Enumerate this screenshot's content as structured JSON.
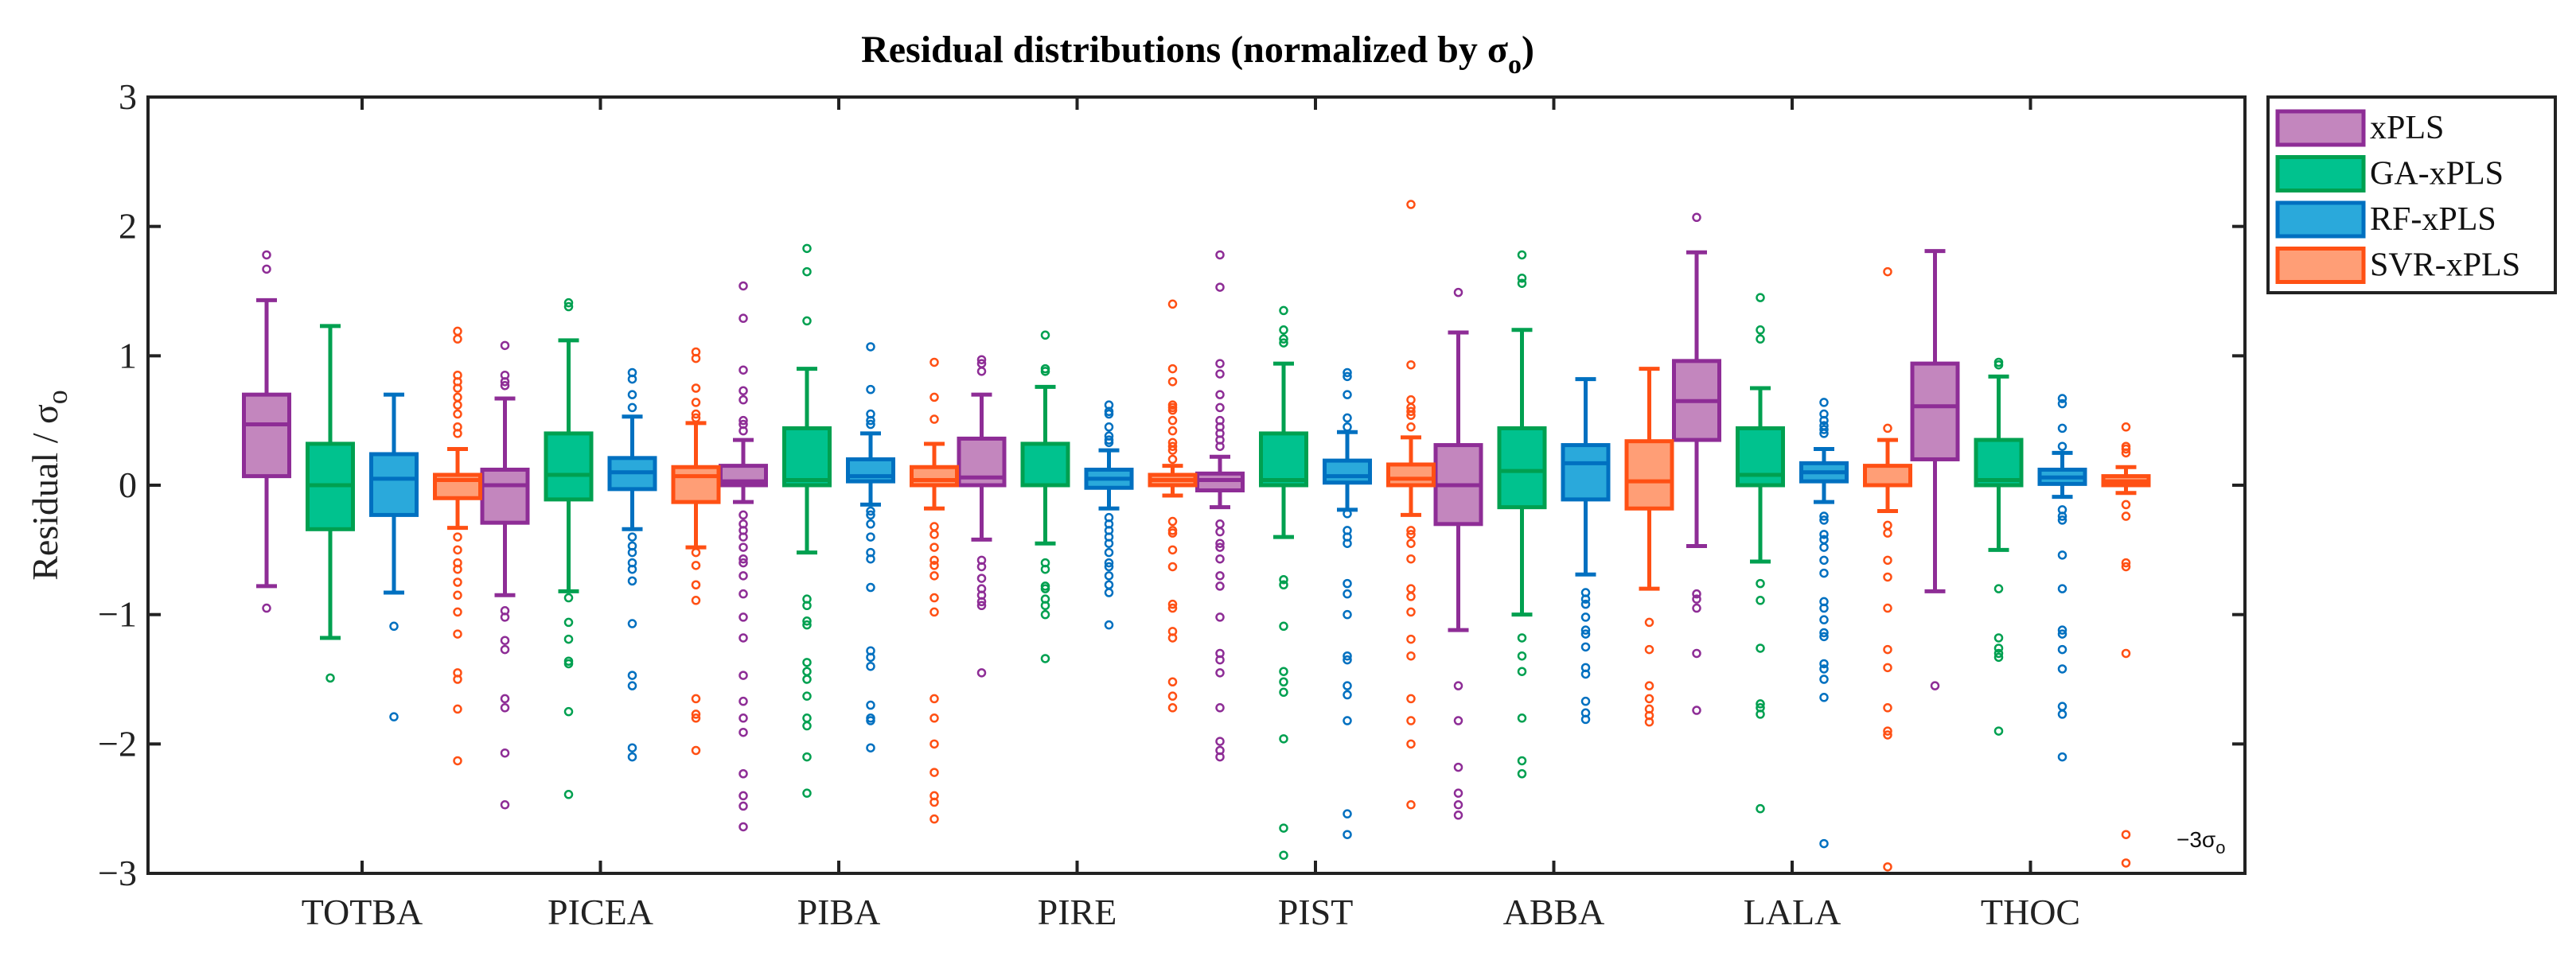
{
  "chart_data": {
    "type": "boxplot",
    "title": "Residual distributions (normalized by σ",
    "title_sub": "o",
    "title_close": ")",
    "ylabel": "Residual / σ",
    "ylabel_sub": "o",
    "xlabel": "",
    "ylim": [
      -3,
      3
    ],
    "yticks": [
      -3,
      -2,
      -1,
      0,
      1,
      2,
      3
    ],
    "ytick_labels": [
      "−3",
      "−2",
      "−1",
      "0",
      "1",
      "2",
      "3"
    ],
    "annotation": {
      "text": "−3σ",
      "sub": "o",
      "y": -3
    },
    "legend_position": "outside-top-right",
    "categories": [
      "TOTBA",
      "PICEA",
      "PIBA",
      "PIRE",
      "PIST",
      "ABBA",
      "LALA",
      "THOC"
    ],
    "series": [
      {
        "name": "xPLS",
        "fill": "#C386BE",
        "edge": "#8E2D96",
        "boxes": [
          {
            "lo": -0.78,
            "q1": 0.07,
            "med": 0.47,
            "q3": 0.7,
            "hi": 1.43,
            "outliers": [
              1.78,
              1.67,
              -0.95
            ]
          },
          {
            "lo": -0.85,
            "q1": -0.29,
            "med": 0.0,
            "q3": 0.12,
            "hi": 0.67,
            "outliers": [
              1.08,
              0.85,
              0.8,
              0.77,
              -0.97,
              -1.02,
              -1.2,
              -1.27,
              -1.65,
              -1.72,
              -2.07,
              -2.47
            ]
          },
          {
            "lo": -0.13,
            "q1": 0.0,
            "med": 0.03,
            "q3": 0.15,
            "hi": 0.35,
            "outliers": [
              1.54,
              1.29,
              0.89,
              0.73,
              0.66,
              0.5,
              0.47,
              0.42,
              -0.23,
              -0.3,
              -0.35,
              -0.4,
              -0.48,
              -0.57,
              -0.6,
              -0.7,
              -0.84,
              -1.02,
              -1.18,
              -1.47,
              -1.67,
              -1.8,
              -1.91,
              -2.23,
              -2.4,
              -2.48,
              -2.64
            ]
          },
          {
            "lo": -0.42,
            "q1": 0.0,
            "med": 0.06,
            "q3": 0.36,
            "hi": 0.7,
            "outliers": [
              0.97,
              0.94,
              0.88,
              -0.58,
              -0.63,
              -0.72,
              -0.8,
              -0.85,
              -0.9,
              -0.93,
              -1.45
            ]
          },
          {
            "lo": -0.17,
            "q1": -0.04,
            "med": 0.04,
            "q3": 0.09,
            "hi": 0.22,
            "outliers": [
              1.78,
              1.53,
              0.94,
              0.86,
              0.7,
              0.6,
              0.5,
              0.45,
              0.4,
              0.35,
              0.3,
              -0.3,
              -0.36,
              -0.45,
              -0.48,
              -0.57,
              -0.7,
              -0.78,
              -1.02,
              -1.3,
              -1.35,
              -1.45,
              -1.72,
              -1.98,
              -2.05,
              -2.1
            ]
          },
          {
            "lo": -1.12,
            "q1": -0.3,
            "med": 0.0,
            "q3": 0.31,
            "hi": 1.18,
            "outliers": [
              1.49,
              -1.55,
              -1.82,
              -2.18,
              -2.38,
              -2.47,
              -2.55
            ]
          },
          {
            "lo": -0.47,
            "q1": 0.35,
            "med": 0.65,
            "q3": 0.96,
            "hi": 1.8,
            "outliers": [
              2.07,
              -0.84,
              -0.88,
              -0.95,
              -1.3,
              -1.74
            ]
          },
          {
            "lo": -0.82,
            "q1": 0.2,
            "med": 0.61,
            "q3": 0.94,
            "hi": 1.81,
            "outliers": [
              -1.55
            ]
          }
        ]
      },
      {
        "name": "GA-xPLS",
        "fill": "#00C28E",
        "edge": "#00A050",
        "boxes": [
          {
            "lo": -1.18,
            "q1": -0.34,
            "med": 0.0,
            "q3": 0.32,
            "hi": 1.23,
            "outliers": [
              -1.49
            ]
          },
          {
            "lo": -0.82,
            "q1": -0.11,
            "med": 0.08,
            "q3": 0.4,
            "hi": 1.12,
            "outliers": [
              1.41,
              1.38,
              -0.87,
              -1.06,
              -1.19,
              -1.36,
              -1.38,
              -1.75,
              -2.39
            ]
          },
          {
            "lo": -0.52,
            "q1": 0.0,
            "med": 0.04,
            "q3": 0.44,
            "hi": 0.9,
            "outliers": [
              1.83,
              1.65,
              1.27,
              -0.88,
              -0.93,
              -1.05,
              -1.08,
              -1.37,
              -1.44,
              -1.5,
              -1.63,
              -1.8,
              -1.86,
              -2.1,
              -2.38
            ]
          },
          {
            "lo": -0.45,
            "q1": 0.0,
            "med": 0.0,
            "q3": 0.32,
            "hi": 0.76,
            "outliers": [
              1.16,
              0.9,
              0.88,
              -0.6,
              -0.65,
              -0.78,
              -0.8,
              -0.88,
              -0.93,
              -1.0,
              -1.34
            ]
          },
          {
            "lo": -0.4,
            "q1": 0.0,
            "med": 0.04,
            "q3": 0.4,
            "hi": 0.94,
            "outliers": [
              1.35,
              1.2,
              1.13,
              1.1,
              -0.73,
              -0.77,
              -1.09,
              -1.44,
              -1.52,
              -1.6,
              -1.96,
              -2.65,
              -2.86
            ]
          },
          {
            "lo": -1.0,
            "q1": -0.17,
            "med": 0.11,
            "q3": 0.44,
            "hi": 1.2,
            "outliers": [
              1.78,
              1.6,
              1.56,
              -1.18,
              -1.32,
              -1.44,
              -1.8,
              -2.13,
              -2.23
            ]
          },
          {
            "lo": -0.59,
            "q1": 0.0,
            "med": 0.08,
            "q3": 0.44,
            "hi": 0.75,
            "outliers": [
              1.45,
              1.2,
              1.13,
              -0.76,
              -0.89,
              -1.26,
              -1.69,
              -1.72,
              -1.77,
              -2.5
            ]
          },
          {
            "lo": -0.5,
            "q1": 0.0,
            "med": 0.04,
            "q3": 0.35,
            "hi": 0.84,
            "outliers": [
              0.95,
              0.93,
              -0.8,
              -1.18,
              -1.26,
              -1.3,
              -1.33,
              -1.9
            ]
          }
        ]
      },
      {
        "name": "RF-xPLS",
        "fill": "#2AA9DB",
        "edge": "#0070C0",
        "boxes": [
          {
            "lo": -0.83,
            "q1": -0.23,
            "med": 0.05,
            "q3": 0.24,
            "hi": 0.7,
            "outliers": [
              -1.09,
              -1.79
            ]
          },
          {
            "lo": -0.34,
            "q1": -0.03,
            "med": 0.1,
            "q3": 0.21,
            "hi": 0.53,
            "outliers": [
              0.87,
              0.82,
              0.7,
              0.6,
              -0.4,
              -0.47,
              -0.52,
              -0.6,
              -0.65,
              -0.74,
              -1.07,
              -1.47,
              -1.55,
              -2.03,
              -2.1
            ]
          },
          {
            "lo": -0.15,
            "q1": 0.03,
            "med": 0.07,
            "q3": 0.2,
            "hi": 0.4,
            "outliers": [
              1.07,
              0.74,
              0.55,
              0.5,
              0.47,
              -0.2,
              -0.23,
              -0.3,
              -0.4,
              -0.52,
              -0.57,
              -0.79,
              -1.28,
              -1.33,
              -1.4,
              -1.7,
              -1.8,
              -1.82,
              -2.03
            ]
          },
          {
            "lo": -0.18,
            "q1": -0.02,
            "med": 0.05,
            "q3": 0.12,
            "hi": 0.27,
            "outliers": [
              0.62,
              0.57,
              0.55,
              0.45,
              0.38,
              0.35,
              0.33,
              -0.25,
              -0.3,
              -0.35,
              -0.4,
              -0.45,
              -0.52,
              -0.6,
              -0.63,
              -0.7,
              -0.77,
              -0.83,
              -1.08
            ]
          },
          {
            "lo": -0.19,
            "q1": 0.02,
            "med": 0.07,
            "q3": 0.19,
            "hi": 0.41,
            "outliers": [
              0.87,
              0.84,
              0.7,
              0.52,
              0.45,
              -0.22,
              -0.35,
              -0.4,
              -0.45,
              -0.76,
              -0.84,
              -1.0,
              -1.32,
              -1.35,
              -1.55,
              -1.62,
              -1.82,
              -2.54,
              -2.7
            ]
          },
          {
            "lo": -0.69,
            "q1": -0.11,
            "med": 0.17,
            "q3": 0.31,
            "hi": 0.82,
            "outliers": [
              -0.83,
              -0.88,
              -0.92,
              -1.02,
              -1.12,
              -1.15,
              -1.25,
              -1.41,
              -1.46,
              -1.67,
              -1.76,
              -1.81
            ]
          },
          {
            "lo": -0.13,
            "q1": 0.03,
            "med": 0.1,
            "q3": 0.17,
            "hi": 0.28,
            "outliers": [
              0.64,
              0.55,
              0.5,
              0.46,
              0.43,
              0.4,
              -0.24,
              -0.27,
              -0.38,
              -0.42,
              -0.48,
              -0.58,
              -0.68,
              -0.9,
              -0.95,
              -1.04,
              -1.14,
              -1.17,
              -1.38,
              -1.42,
              -1.5,
              -1.64,
              -2.77
            ]
          },
          {
            "lo": -0.09,
            "q1": 0.01,
            "med": 0.06,
            "q3": 0.12,
            "hi": 0.25,
            "outliers": [
              0.67,
              0.63,
              0.44,
              0.3,
              -0.19,
              -0.24,
              -0.27,
              -0.54,
              -0.8,
              -1.12,
              -1.15,
              -1.27,
              -1.42,
              -1.71,
              -1.77,
              -2.1
            ]
          }
        ]
      },
      {
        "name": "SVR-xPLS",
        "fill": "#FF9E76",
        "edge": "#FF5014",
        "boxes": [
          {
            "lo": -0.33,
            "q1": -0.1,
            "med": 0.04,
            "q3": 0.08,
            "hi": 0.28,
            "outliers": [
              1.19,
              1.13,
              0.85,
              0.8,
              0.75,
              0.68,
              0.62,
              0.55,
              0.45,
              0.4,
              -0.4,
              -0.5,
              -0.6,
              -0.65,
              -0.75,
              -0.85,
              -0.98,
              -1.15,
              -1.45,
              -1.5,
              -1.73,
              -2.13
            ]
          },
          {
            "lo": -0.48,
            "q1": -0.13,
            "med": 0.07,
            "q3": 0.14,
            "hi": 0.48,
            "outliers": [
              1.03,
              0.98,
              0.75,
              0.64,
              0.55,
              0.52,
              -0.52,
              -0.62,
              -0.77,
              -0.89,
              -1.65,
              -1.77,
              -1.8,
              -2.05
            ]
          },
          {
            "lo": -0.18,
            "q1": 0.0,
            "med": 0.04,
            "q3": 0.14,
            "hi": 0.32,
            "outliers": [
              0.95,
              0.68,
              0.51,
              -0.32,
              -0.38,
              -0.48,
              -0.58,
              -0.62,
              -0.7,
              -0.87,
              -0.98,
              -1.65,
              -1.8,
              -2.0,
              -2.22,
              -2.4,
              -2.45,
              -2.58
            ]
          },
          {
            "lo": -0.08,
            "q1": 0.0,
            "med": 0.04,
            "q3": 0.08,
            "hi": 0.15,
            "outliers": [
              1.4,
              0.9,
              0.8,
              0.62,
              0.6,
              0.58,
              0.5,
              0.42,
              0.33,
              0.3,
              0.27,
              0.2,
              -0.28,
              -0.35,
              -0.37,
              -0.5,
              -0.63,
              -0.92,
              -0.95,
              -1.13,
              -1.18,
              -1.52,
              -1.63,
              -1.72
            ]
          },
          {
            "lo": -0.23,
            "q1": 0.0,
            "med": 0.05,
            "q3": 0.16,
            "hi": 0.37,
            "outliers": [
              2.17,
              0.93,
              0.66,
              0.6,
              0.57,
              0.54,
              0.45,
              -0.35,
              -0.38,
              -0.45,
              -0.57,
              -0.8,
              -0.86,
              -0.98,
              -1.19,
              -1.32,
              -1.65,
              -1.82,
              -2.0,
              -2.47
            ]
          },
          {
            "lo": -0.8,
            "q1": -0.18,
            "med": 0.03,
            "q3": 0.34,
            "hi": 0.9,
            "outliers": [
              -1.06,
              -1.27,
              -1.55,
              -1.65,
              -1.73,
              -1.78,
              -1.83
            ]
          },
          {
            "lo": -0.2,
            "q1": 0.0,
            "med": 0.0,
            "q3": 0.15,
            "hi": 0.35,
            "outliers": [
              1.65,
              0.44,
              -0.31,
              -0.37,
              -0.58,
              -0.71,
              -0.95,
              -1.27,
              -1.41,
              -1.72,
              -1.9,
              -1.93,
              -2.95
            ]
          },
          {
            "lo": -0.06,
            "q1": 0.0,
            "med": 0.03,
            "q3": 0.07,
            "hi": 0.14,
            "outliers": [
              0.45,
              0.3,
              0.28,
              0.25,
              -0.15,
              -0.24,
              -0.6,
              -0.63,
              -1.3,
              -2.7,
              -2.92
            ]
          }
        ]
      }
    ]
  }
}
